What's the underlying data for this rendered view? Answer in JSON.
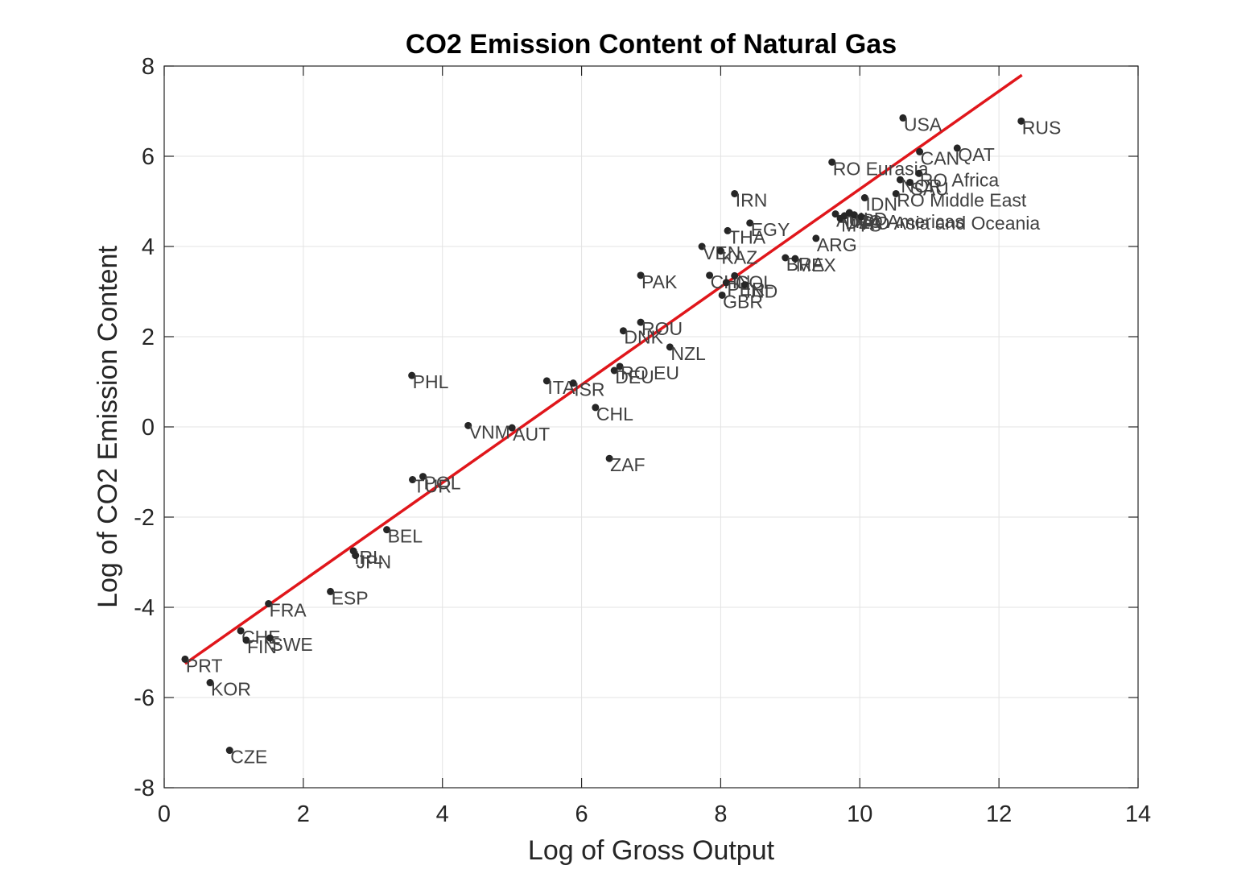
{
  "chart_data": {
    "type": "scatter",
    "title": "CO2 Emission Content of Natural Gas",
    "xlabel": "Log of Gross Output",
    "ylabel": "Log of CO2 Emission Content",
    "xlim": [
      0,
      14
    ],
    "ylim": [
      -8,
      8
    ],
    "xticks": [
      0,
      2,
      4,
      6,
      8,
      10,
      12,
      14
    ],
    "yticks": [
      -8,
      -6,
      -4,
      -2,
      0,
      2,
      4,
      6,
      8
    ],
    "xtick_labels": [
      "0",
      "2",
      "4",
      "6",
      "8",
      "10",
      "12",
      "14"
    ],
    "ytick_labels": [
      "-8",
      "-6",
      "-4",
      "-2",
      "0",
      "2",
      "4",
      "6",
      "8"
    ],
    "grid": true,
    "legend": "none",
    "colors": {
      "points": "#262626",
      "fit_line": "#e0161b",
      "labels": "#404040",
      "grid": "#e3e3e3"
    },
    "fit_line": {
      "x": [
        0.3,
        12.33
      ],
      "y": [
        -5.25,
        7.8
      ]
    },
    "points": [
      {
        "label": "USA",
        "x": 10.62,
        "y": 6.85
      },
      {
        "label": "RUS",
        "x": 12.32,
        "y": 6.78
      },
      {
        "label": "QAT",
        "x": 11.4,
        "y": 6.18
      },
      {
        "label": "CAN",
        "x": 10.86,
        "y": 6.1
      },
      {
        "label": "RO Eurasia",
        "x": 9.6,
        "y": 5.87
      },
      {
        "label": "RO Africa",
        "x": 10.85,
        "y": 5.62
      },
      {
        "label": "NOR",
        "x": 10.58,
        "y": 5.48
      },
      {
        "label": "SAU",
        "x": 10.72,
        "y": 5.42
      },
      {
        "label": "IRN",
        "x": 8.2,
        "y": 5.17
      },
      {
        "label": "RO Middle East",
        "x": 10.52,
        "y": 5.17
      },
      {
        "label": "IDN",
        "x": 10.07,
        "y": 5.08
      },
      {
        "label": "AUS",
        "x": 9.65,
        "y": 4.72
      },
      {
        "label": "MYS",
        "x": 9.72,
        "y": 4.62
      },
      {
        "label": "DZA",
        "x": 9.78,
        "y": 4.68
      },
      {
        "label": "NLD",
        "x": 9.85,
        "y": 4.75
      },
      {
        "label": "RO Americas",
        "x": 9.92,
        "y": 4.7
      },
      {
        "label": "RO Asia and Oceania",
        "x": 10.02,
        "y": 4.66
      },
      {
        "label": "EGY",
        "x": 8.42,
        "y": 4.52
      },
      {
        "label": "THA",
        "x": 8.1,
        "y": 4.35
      },
      {
        "label": "ARG",
        "x": 9.37,
        "y": 4.18
      },
      {
        "label": "VEN",
        "x": 7.73,
        "y": 4.0
      },
      {
        "label": "KAZ",
        "x": 8.0,
        "y": 3.9
      },
      {
        "label": "BRA",
        "x": 8.93,
        "y": 3.75
      },
      {
        "label": "MEX",
        "x": 9.07,
        "y": 3.73
      },
      {
        "label": "PAK",
        "x": 6.85,
        "y": 3.36
      },
      {
        "label": "CHN",
        "x": 7.84,
        "y": 3.36
      },
      {
        "label": "COL",
        "x": 8.2,
        "y": 3.35
      },
      {
        "label": "PER",
        "x": 8.08,
        "y": 3.2
      },
      {
        "label": "IND",
        "x": 8.35,
        "y": 3.15
      },
      {
        "label": "GBR",
        "x": 8.02,
        "y": 2.92
      },
      {
        "label": "ROU",
        "x": 6.85,
        "y": 2.32
      },
      {
        "label": "DNK",
        "x": 6.6,
        "y": 2.13
      },
      {
        "label": "NZL",
        "x": 7.27,
        "y": 1.77
      },
      {
        "label": "RO EU",
        "x": 6.55,
        "y": 1.34
      },
      {
        "label": "DEU",
        "x": 6.47,
        "y": 1.25
      },
      {
        "label": "PHL",
        "x": 3.56,
        "y": 1.14
      },
      {
        "label": "ITA",
        "x": 5.5,
        "y": 1.02
      },
      {
        "label": "ISR",
        "x": 5.88,
        "y": 0.97
      },
      {
        "label": "CHL",
        "x": 6.2,
        "y": 0.43
      },
      {
        "label": "VNM",
        "x": 4.37,
        "y": 0.03
      },
      {
        "label": "AUT",
        "x": 5.0,
        "y": -0.02
      },
      {
        "label": "ZAF",
        "x": 6.4,
        "y": -0.7
      },
      {
        "label": "POL",
        "x": 3.72,
        "y": -1.1
      },
      {
        "label": "TUR",
        "x": 3.57,
        "y": -1.17
      },
      {
        "label": "BEL",
        "x": 3.2,
        "y": -2.28
      },
      {
        "label": "IRL",
        "x": 2.72,
        "y": -2.75
      },
      {
        "label": "JPN",
        "x": 2.75,
        "y": -2.85
      },
      {
        "label": "ESP",
        "x": 2.39,
        "y": -3.65
      },
      {
        "label": "FRA",
        "x": 1.5,
        "y": -3.92
      },
      {
        "label": "CHE",
        "x": 1.1,
        "y": -4.52
      },
      {
        "label": "FIN",
        "x": 1.18,
        "y": -4.73
      },
      {
        "label": "SWE",
        "x": 1.52,
        "y": -4.68
      },
      {
        "label": "PRT",
        "x": 0.3,
        "y": -5.15
      },
      {
        "label": "KOR",
        "x": 0.66,
        "y": -5.67
      },
      {
        "label": "CZE",
        "x": 0.94,
        "y": -7.17
      }
    ]
  }
}
